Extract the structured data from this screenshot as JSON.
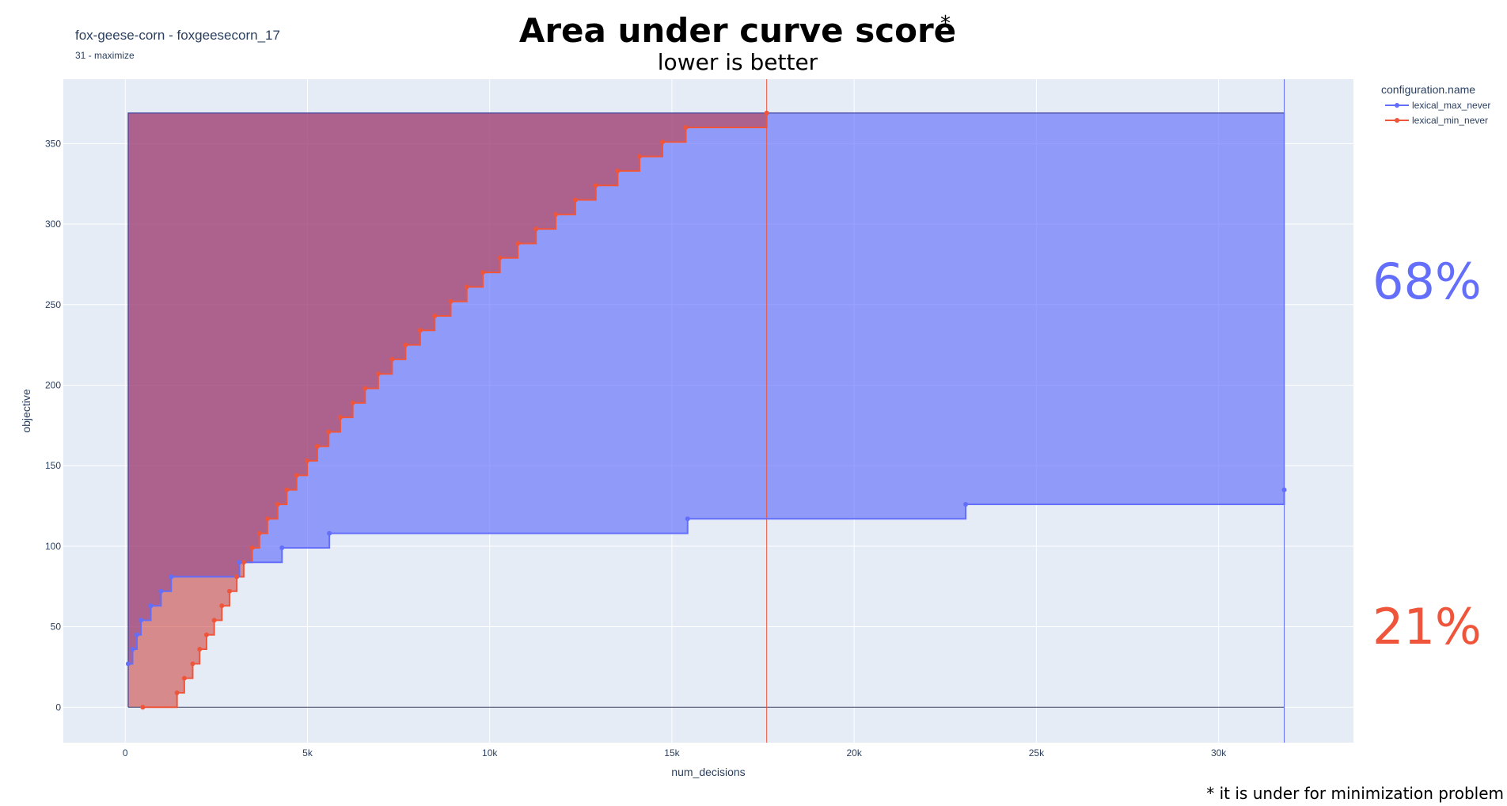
{
  "header": {
    "title": "Area under curve score",
    "title_mark": "*",
    "subtitle": "lower is better",
    "instance_title": "fox-geese-corn - foxgeesecorn_17",
    "instance_subtitle": "31 - maximize"
  },
  "footnote": "* it is under for minimization problem",
  "scores": [
    {
      "series": "lexical_max_never",
      "label": "68%",
      "color": "#636efa"
    },
    {
      "series": "lexical_min_never",
      "label": "21%",
      "color": "#ef553b"
    }
  ],
  "legend": {
    "title": "configuration.name",
    "items": [
      {
        "label": "lexical_max_never",
        "color": "#636efa"
      },
      {
        "label": "lexical_min_never",
        "color": "#ef553b"
      }
    ]
  },
  "chart_data": {
    "type": "line",
    "line_shape": "step",
    "xlabel": "num_decisions",
    "ylabel": "objective",
    "xlim": [
      -1700,
      33700
    ],
    "ylim": [
      -22,
      390
    ],
    "xticks": [
      0,
      5000,
      10000,
      15000,
      20000,
      25000,
      30000
    ],
    "xtick_labels": [
      "0",
      "5k",
      "10k",
      "15k",
      "20k",
      "25k",
      "30k"
    ],
    "yticks": [
      0,
      50,
      100,
      150,
      200,
      250,
      300,
      350
    ],
    "ytick_labels": [
      "0",
      "50",
      "100",
      "150",
      "200",
      "250",
      "300",
      "350"
    ],
    "grid": true,
    "legend_position": "top-right",
    "bound_max": 369,
    "bound_min": 0,
    "series": [
      {
        "name": "lexical_max_never",
        "color": "#636efa",
        "x_end": 31800,
        "points": [
          [
            80,
            27
          ],
          [
            200,
            36
          ],
          [
            320,
            45
          ],
          [
            430,
            54
          ],
          [
            700,
            63
          ],
          [
            980,
            72
          ],
          [
            1260,
            81
          ],
          [
            3130,
            90
          ],
          [
            4300,
            99
          ],
          [
            5600,
            108
          ],
          [
            15430,
            117
          ],
          [
            23060,
            126
          ],
          [
            31800,
            135
          ]
        ]
      },
      {
        "name": "lexical_min_never",
        "color": "#ef553b",
        "x_end": 17600,
        "points": [
          [
            480,
            0
          ],
          [
            1420,
            9
          ],
          [
            1620,
            18
          ],
          [
            1850,
            27
          ],
          [
            2040,
            36
          ],
          [
            2230,
            45
          ],
          [
            2440,
            54
          ],
          [
            2650,
            63
          ],
          [
            2860,
            72
          ],
          [
            3060,
            81
          ],
          [
            3250,
            90
          ],
          [
            3480,
            99
          ],
          [
            3680,
            108
          ],
          [
            3900,
            117
          ],
          [
            4180,
            126
          ],
          [
            4430,
            135
          ],
          [
            4700,
            144
          ],
          [
            4990,
            153
          ],
          [
            5270,
            162
          ],
          [
            5580,
            171
          ],
          [
            5900,
            180
          ],
          [
            6240,
            189
          ],
          [
            6580,
            198
          ],
          [
            6940,
            207
          ],
          [
            7320,
            216
          ],
          [
            7690,
            225
          ],
          [
            8090,
            234
          ],
          [
            8490,
            243
          ],
          [
            8930,
            252
          ],
          [
            9370,
            261
          ],
          [
            9810,
            270
          ],
          [
            10280,
            279
          ],
          [
            10770,
            288
          ],
          [
            11270,
            297
          ],
          [
            11810,
            306
          ],
          [
            12350,
            315
          ],
          [
            12910,
            324
          ],
          [
            13510,
            333
          ],
          [
            14110,
            342
          ],
          [
            14740,
            351
          ],
          [
            15380,
            360
          ],
          [
            17600,
            369
          ]
        ]
      }
    ]
  }
}
